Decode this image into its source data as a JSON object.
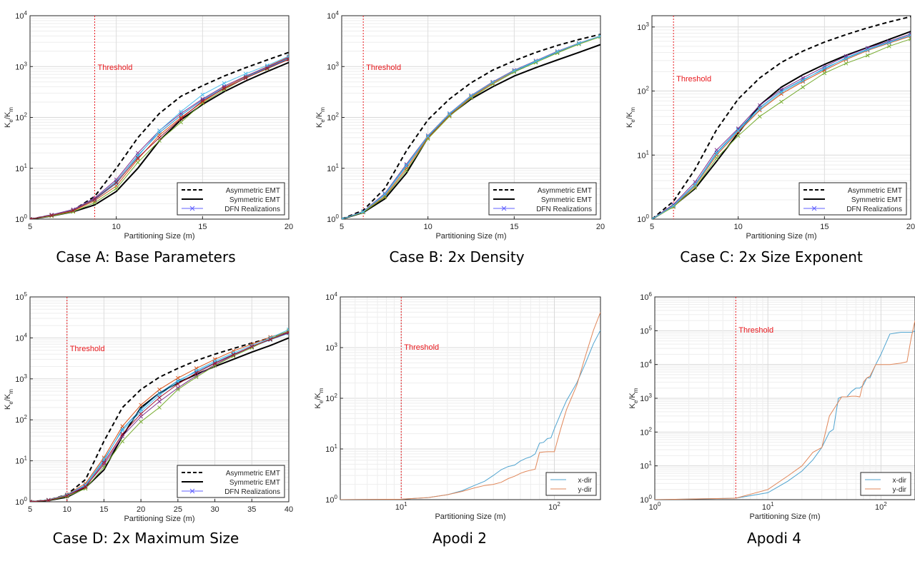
{
  "captions": [
    "Case A: Base Parameters",
    "Case B: 2x Density",
    "Case C: 2x Size Exponent",
    "Case D: 2x Maximum Size",
    "Apodi 2",
    "Apodi 4"
  ],
  "colors": {
    "threshold": "#e8181d",
    "asymmetric": "#000000",
    "symmetric": "#000000",
    "dfn_marker": "#6060ff",
    "xdir": "#4fa3cf",
    "ydir": "#e0875a",
    "realizations": [
      "#1f8fd0",
      "#d95319",
      "#7e2f8e",
      "#77ac30",
      "#4dbeee",
      "#a2142f",
      "#333333",
      "#00b050",
      "#ff00ff",
      "#00c0c0"
    ]
  },
  "chart_data": [
    {
      "type": "line",
      "caption": "Case A: Base Parameters",
      "xlabel": "Partitioning Size (m)",
      "ylabel": "K_e/K_m",
      "xscale": "linear",
      "yscale": "log",
      "xlim": [
        5,
        20
      ],
      "ylim": [
        1,
        10000
      ],
      "xticks": [
        5,
        10,
        15,
        20
      ],
      "xtick_labels": [
        "5",
        "10",
        "15",
        "20"
      ],
      "yticks_exp": [
        0,
        1,
        2,
        3,
        4
      ],
      "grid": true,
      "threshold": {
        "x": 8.75,
        "label": "Threshold"
      },
      "legend": {
        "position": "bottom-right",
        "entries": [
          "Asymmetric EMT",
          "Symmetric EMT",
          "DFN Realizations"
        ]
      },
      "x": [
        5,
        6.25,
        7.5,
        8.75,
        10,
        11.25,
        12.5,
        13.75,
        15,
        16.25,
        17.5,
        18.75,
        20
      ],
      "series": [
        {
          "name": "Asymmetric EMT",
          "style": "dashed",
          "values": [
            1,
            1.2,
            1.5,
            2.8,
            10,
            40,
            120,
            260,
            420,
            650,
            950,
            1350,
            1900
          ]
        },
        {
          "name": "Symmetric EMT",
          "style": "solid",
          "values": [
            1,
            1.15,
            1.4,
            1.9,
            3.5,
            10,
            35,
            90,
            180,
            320,
            520,
            800,
            1200
          ]
        },
        {
          "name": "DFN Realizations",
          "style": "markers",
          "realizations": [
            [
              1,
              1.2,
              1.5,
              2.5,
              5.5,
              18,
              50,
              110,
              220,
              390,
              620,
              950,
              1450
            ],
            [
              1,
              1.18,
              1.45,
              2.3,
              4.5,
              15,
              45,
              100,
              200,
              380,
              640,
              1000,
              1550
            ],
            [
              1,
              1.22,
              1.55,
              2.6,
              6,
              20,
              55,
              120,
              230,
              410,
              650,
              980,
              1500
            ],
            [
              1,
              1.15,
              1.4,
              2.1,
              4,
              13,
              35,
              80,
              190,
              350,
              600,
              900,
              1400
            ],
            [
              1,
              1.2,
              1.5,
              2.4,
              5,
              17,
              55,
              130,
              280,
              470,
              720,
              1050,
              1600
            ],
            [
              1,
              1.19,
              1.48,
              2.45,
              5.2,
              16,
              40,
              95,
              210,
              370,
              590,
              920,
              1380
            ]
          ]
        }
      ]
    },
    {
      "type": "line",
      "caption": "Case B: 2x Density",
      "xlabel": "Partitioning Size (m)",
      "ylabel": "K_e/K_m",
      "xscale": "linear",
      "yscale": "log",
      "xlim": [
        5,
        20
      ],
      "ylim": [
        1,
        10000
      ],
      "xticks": [
        5,
        10,
        15,
        20
      ],
      "xtick_labels": [
        "5",
        "10",
        "15",
        "20"
      ],
      "yticks_exp": [
        0,
        1,
        2,
        3,
        4
      ],
      "grid": true,
      "threshold": {
        "x": 6.25,
        "label": "Threshold"
      },
      "legend": {
        "position": "bottom-right",
        "entries": [
          "Asymmetric EMT",
          "Symmetric EMT",
          "DFN Realizations"
        ]
      },
      "x": [
        5,
        6.25,
        7.5,
        8.75,
        10,
        11.25,
        12.5,
        13.75,
        15,
        16.25,
        17.5,
        18.75,
        20
      ],
      "series": [
        {
          "name": "Asymmetric EMT",
          "style": "dashed",
          "values": [
            1,
            1.5,
            4,
            22,
            90,
            230,
            480,
            850,
            1300,
            1900,
            2600,
            3400,
            4300
          ]
        },
        {
          "name": "Symmetric EMT",
          "style": "solid",
          "values": [
            1,
            1.35,
            2.5,
            8,
            40,
            110,
            230,
            400,
            650,
            950,
            1350,
            1900,
            2700
          ]
        },
        {
          "name": "DFN Realizations",
          "style": "markers",
          "realizations": [
            [
              1,
              1.4,
              3,
              11,
              42,
              115,
              260,
              480,
              800,
              1250,
              1900,
              2800,
              3900
            ],
            [
              1,
              1.38,
              2.8,
              10,
              40,
              110,
              250,
              470,
              820,
              1300,
              1950,
              2850,
              3950
            ],
            [
              1,
              1.42,
              3.2,
              12,
              44,
              120,
              270,
              500,
              850,
              1300,
              2000,
              2900,
              4000
            ],
            [
              1,
              1.36,
              2.7,
              9,
              38,
              105,
              240,
              450,
              780,
              1200,
              1850,
              2750,
              3850
            ],
            [
              1,
              1.4,
              3.1,
              11.5,
              43,
              118,
              265,
              490,
              830,
              1280,
              1970,
              2870,
              3980
            ]
          ]
        }
      ]
    },
    {
      "type": "line",
      "caption": "Case C: 2x Size Exponent",
      "xlabel": "Partitioning Size (m)",
      "ylabel": "K_e/K_m",
      "xscale": "linear",
      "yscale": "log",
      "xlim": [
        5,
        20
      ],
      "ylim": [
        1,
        1500
      ],
      "xticks": [
        5,
        10,
        15,
        20
      ],
      "xtick_labels": [
        "5",
        "10",
        "15",
        "20"
      ],
      "yticks_exp": [
        0,
        1,
        2,
        3
      ],
      "grid": true,
      "threshold": {
        "x": 6.25,
        "label": "Threshold"
      },
      "legend": {
        "position": "bottom-right",
        "entries": [
          "Asymmetric EMT",
          "Symmetric EMT",
          "DFN Realizations"
        ]
      },
      "x": [
        5,
        6.25,
        7.5,
        8.75,
        10,
        11.25,
        12.5,
        13.75,
        15,
        16.25,
        17.5,
        18.75,
        20
      ],
      "series": [
        {
          "name": "Asymmetric EMT",
          "style": "dashed",
          "values": [
            1,
            1.9,
            6,
            25,
            75,
            160,
            280,
            420,
            580,
            760,
            970,
            1200,
            1450
          ]
        },
        {
          "name": "Symmetric EMT",
          "style": "solid",
          "values": [
            1,
            1.6,
            3,
            8,
            22,
            60,
            115,
            180,
            260,
            360,
            480,
            640,
            850
          ]
        },
        {
          "name": "DFN Realizations",
          "style": "markers",
          "realizations": [
            [
              1,
              1.65,
              3.5,
              11,
              25,
              55,
              100,
              150,
              220,
              330,
              450,
              580,
              750
            ],
            [
              1,
              1.6,
              3.3,
              10,
              23,
              50,
              90,
              140,
              210,
              310,
              430,
              560,
              720
            ],
            [
              1,
              1.7,
              3.8,
              12,
              26,
              60,
              105,
              160,
              240,
              350,
              470,
              600,
              780
            ],
            [
              1,
              1.55,
              3.1,
              9,
              20,
              40,
              68,
              115,
              190,
              270,
              360,
              500,
              650
            ],
            [
              1,
              1.62,
              3.4,
              10.5,
              24,
              52,
              95,
              145,
              230,
              320,
              440,
              570,
              740
            ]
          ]
        }
      ]
    },
    {
      "type": "line",
      "caption": "Case D: 2x Maximum Size",
      "xlabel": "Partitioning Size (m)",
      "ylabel": "K_e/K_m",
      "xscale": "linear",
      "yscale": "log",
      "xlim": [
        5,
        40
      ],
      "ylim": [
        1,
        100000
      ],
      "xticks": [
        5,
        10,
        15,
        20,
        25,
        30,
        35,
        40
      ],
      "xtick_labels": [
        "5",
        "10",
        "15",
        "20",
        "25",
        "30",
        "35",
        "40"
      ],
      "yticks_exp": [
        0,
        1,
        2,
        3,
        4,
        5
      ],
      "grid": true,
      "threshold": {
        "x": 10,
        "label": "Threshold"
      },
      "legend": {
        "position": "bottom-right",
        "entries": [
          "Asymmetric EMT",
          "Symmetric EMT",
          "DFN Realizations"
        ]
      },
      "x": [
        5,
        7.5,
        10,
        12.5,
        15,
        17.5,
        20,
        22.5,
        25,
        27.5,
        30,
        32.5,
        35,
        37.5,
        40
      ],
      "series": [
        {
          "name": "Asymmetric EMT",
          "style": "dashed",
          "values": [
            1,
            1.1,
            1.5,
            3.5,
            30,
            200,
            550,
            1100,
            1800,
            2800,
            4000,
            5500,
            7500,
            10000,
            13500
          ]
        },
        {
          "name": "Symmetric EMT",
          "style": "solid",
          "values": [
            1,
            1.08,
            1.3,
            2.2,
            6,
            40,
            200,
            450,
            800,
            1300,
            2000,
            3000,
            4500,
            6500,
            10000
          ]
        },
        {
          "name": "DFN Realizations",
          "style": "markers",
          "realizations": [
            [
              1,
              1.1,
              1.4,
              2.5,
              10,
              60,
              180,
              450,
              900,
              1500,
              2500,
              4000,
              6000,
              9000,
              13000
            ],
            [
              1,
              1.12,
              1.5,
              2.8,
              12,
              70,
              230,
              550,
              1050,
              1800,
              3000,
              4800,
              7000,
              10500,
              14500
            ],
            [
              1,
              1.1,
              1.45,
              2.4,
              8,
              40,
              120,
              280,
              600,
              1200,
              2200,
              3800,
              6000,
              9500,
              14000
            ],
            [
              1,
              1.08,
              1.35,
              2.1,
              7,
              30,
              90,
              200,
              550,
              1100,
              2100,
              3600,
              5800,
              9500,
              15000
            ],
            [
              1,
              1.11,
              1.48,
              2.6,
              11,
              55,
              160,
              400,
              850,
              1600,
              2700,
              4300,
              6500,
              10000,
              16000
            ],
            [
              1,
              1.09,
              1.42,
              2.3,
              9,
              45,
              140,
              350,
              750,
              1400,
              2400,
              3900,
              6200,
              9200,
              13500
            ]
          ]
        }
      ]
    },
    {
      "type": "line",
      "caption": "Apodi 2",
      "xlabel": "Partitioning Size (m)",
      "ylabel": "K_e/K_m",
      "xscale": "log",
      "yscale": "log",
      "xlim": [
        4,
        200
      ],
      "ylim": [
        1,
        10000
      ],
      "xticks": [
        10,
        100
      ],
      "xtick_exps": [
        1,
        2
      ],
      "yticks_exp": [
        0,
        1,
        2,
        3,
        4
      ],
      "grid": true,
      "threshold": {
        "x": 10,
        "label": "Threshold"
      },
      "legend": {
        "position": "bottom-right",
        "entries": [
          "x-dir",
          "y-dir"
        ]
      },
      "series": [
        {
          "name": "x-dir",
          "x": [
            4,
            10,
            15,
            20,
            25,
            30,
            35,
            40,
            45,
            50,
            55,
            60,
            65,
            70,
            75,
            80,
            85,
            90,
            95,
            100,
            110,
            120,
            140,
            160,
            180,
            200
          ],
          "values": [
            1,
            1.02,
            1.1,
            1.25,
            1.5,
            1.9,
            2.3,
            3,
            3.9,
            4.5,
            4.8,
            5.8,
            6.5,
            7,
            8,
            13,
            13.5,
            16,
            16.5,
            25,
            50,
            90,
            200,
            500,
            1200,
            2200
          ]
        },
        {
          "name": "y-dir",
          "x": [
            4,
            10,
            15,
            20,
            25,
            30,
            35,
            40,
            45,
            50,
            55,
            60,
            65,
            70,
            75,
            80,
            85,
            90,
            95,
            100,
            110,
            120,
            140,
            160,
            180,
            200
          ],
          "values": [
            1,
            1.02,
            1.1,
            1.25,
            1.45,
            1.7,
            1.9,
            2,
            2.2,
            2.6,
            2.9,
            3.3,
            3.6,
            3.8,
            4,
            8.5,
            8.7,
            8.8,
            8.8,
            8.8,
            25,
            60,
            180,
            700,
            2200,
            5000
          ]
        }
      ]
    },
    {
      "type": "line",
      "caption": "Apodi 4",
      "xlabel": "Partitioning Size (m)",
      "ylabel": "K_e/K_m",
      "xscale": "log",
      "yscale": "log",
      "xlim": [
        1,
        200
      ],
      "ylim": [
        1,
        1000000
      ],
      "xticks": [
        1,
        10,
        100
      ],
      "xtick_exps": [
        0,
        1,
        2
      ],
      "yticks_exp": [
        0,
        1,
        2,
        3,
        4,
        5,
        6
      ],
      "grid": true,
      "threshold": {
        "x": 5.2,
        "label": "Threshold"
      },
      "legend": {
        "position": "bottom-right",
        "entries": [
          "x-dir",
          "y-dir"
        ]
      },
      "series": [
        {
          "name": "x-dir",
          "x": [
            1,
            5.2,
            10,
            15,
            20,
            25,
            30,
            35,
            38,
            42,
            45,
            50,
            55,
            60,
            65,
            70,
            75,
            80,
            90,
            100,
            120,
            150,
            190,
            200
          ],
          "values": [
            1,
            1.1,
            1.6,
            3.5,
            7,
            15,
            35,
            100,
            120,
            1000,
            1100,
            1100,
            1600,
            2000,
            2000,
            2500,
            4000,
            4000,
            10000,
            20000,
            80000,
            90000,
            90000,
            100000
          ]
        },
        {
          "name": "y-dir",
          "x": [
            1,
            5.2,
            10,
            15,
            20,
            25,
            30,
            35,
            40,
            45,
            50,
            55,
            60,
            65,
            70,
            75,
            80,
            90,
            100,
            120,
            150,
            170,
            185,
            200
          ],
          "values": [
            1,
            1.1,
            2,
            5,
            10,
            25,
            35,
            300,
            600,
            1100,
            1100,
            1150,
            1150,
            1100,
            3000,
            4000,
            4500,
            10000,
            10000,
            10000,
            11000,
            12000,
            60000,
            200000
          ]
        }
      ]
    }
  ]
}
